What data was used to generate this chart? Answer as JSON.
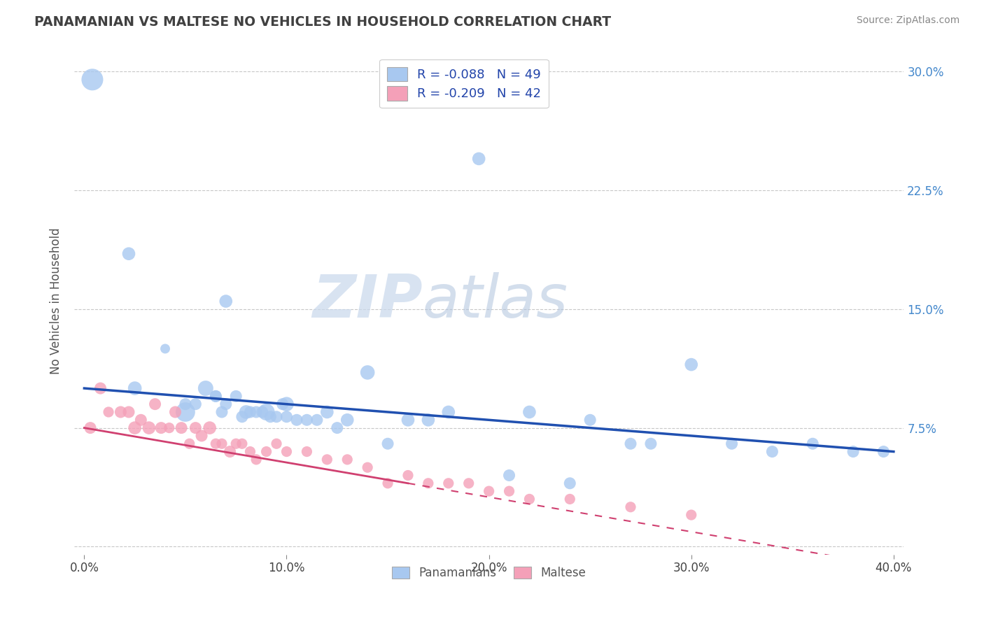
{
  "title": "PANAMANIAN VS MALTESE NO VEHICLES IN HOUSEHOLD CORRELATION CHART",
  "source": "Source: ZipAtlas.com",
  "xlabel_ticks": [
    "0.0%",
    "10.0%",
    "20.0%",
    "30.0%",
    "40.0%"
  ],
  "xlabel_tick_vals": [
    0.0,
    0.1,
    0.2,
    0.3,
    0.4
  ],
  "ylabel_right_ticks": [
    "30.0%",
    "22.5%",
    "15.0%",
    "7.5%",
    ""
  ],
  "ylabel_right_vals": [
    0.3,
    0.225,
    0.15,
    0.075,
    0.0
  ],
  "xlim": [
    -0.005,
    0.405
  ],
  "ylim": [
    -0.005,
    0.315
  ],
  "legend_label1": "R = -0.088   N = 49",
  "legend_label2": "R = -0.209   N = 42",
  "legend_bottom_label1": "Panamanians",
  "legend_bottom_label2": "Maltese",
  "watermark_zip": "ZIP",
  "watermark_atlas": "atlas",
  "panamanian_color": "#a8c8f0",
  "maltese_color": "#f4a0b8",
  "trend_pan_color": "#2050b0",
  "trend_mal_color": "#d04070",
  "panamanian_x": [
    0.004,
    0.022,
    0.04,
    0.05,
    0.05,
    0.055,
    0.06,
    0.065,
    0.065,
    0.068,
    0.07,
    0.07,
    0.075,
    0.078,
    0.08,
    0.082,
    0.085,
    0.088,
    0.09,
    0.092,
    0.095,
    0.098,
    0.1,
    0.1,
    0.105,
    0.11,
    0.115,
    0.12,
    0.125,
    0.13,
    0.14,
    0.15,
    0.16,
    0.17,
    0.18,
    0.195,
    0.21,
    0.22,
    0.24,
    0.25,
    0.27,
    0.28,
    0.3,
    0.32,
    0.34,
    0.36,
    0.38,
    0.395,
    0.025
  ],
  "panamanian_y": [
    0.295,
    0.185,
    0.125,
    0.085,
    0.09,
    0.09,
    0.1,
    0.095,
    0.095,
    0.085,
    0.155,
    0.09,
    0.095,
    0.082,
    0.085,
    0.085,
    0.085,
    0.085,
    0.085,
    0.082,
    0.082,
    0.09,
    0.09,
    0.082,
    0.08,
    0.08,
    0.08,
    0.085,
    0.075,
    0.08,
    0.11,
    0.065,
    0.08,
    0.08,
    0.085,
    0.245,
    0.045,
    0.085,
    0.04,
    0.08,
    0.065,
    0.065,
    0.115,
    0.065,
    0.06,
    0.065,
    0.06,
    0.06,
    0.1
  ],
  "panamanian_size": [
    500,
    180,
    100,
    400,
    150,
    150,
    250,
    150,
    150,
    150,
    180,
    150,
    150,
    150,
    200,
    150,
    150,
    150,
    300,
    150,
    150,
    150,
    220,
    150,
    150,
    150,
    150,
    180,
    150,
    180,
    220,
    150,
    180,
    180,
    180,
    180,
    150,
    180,
    150,
    150,
    150,
    150,
    180,
    150,
    150,
    150,
    150,
    150,
    200
  ],
  "maltese_x": [
    0.003,
    0.008,
    0.012,
    0.018,
    0.022,
    0.025,
    0.028,
    0.032,
    0.035,
    0.038,
    0.042,
    0.045,
    0.048,
    0.052,
    0.055,
    0.058,
    0.062,
    0.065,
    0.068,
    0.072,
    0.075,
    0.078,
    0.082,
    0.085,
    0.09,
    0.095,
    0.1,
    0.11,
    0.12,
    0.13,
    0.14,
    0.15,
    0.16,
    0.17,
    0.18,
    0.19,
    0.2,
    0.21,
    0.22,
    0.24,
    0.27,
    0.3
  ],
  "maltese_y": [
    0.075,
    0.1,
    0.085,
    0.085,
    0.085,
    0.075,
    0.08,
    0.075,
    0.09,
    0.075,
    0.075,
    0.085,
    0.075,
    0.065,
    0.075,
    0.07,
    0.075,
    0.065,
    0.065,
    0.06,
    0.065,
    0.065,
    0.06,
    0.055,
    0.06,
    0.065,
    0.06,
    0.06,
    0.055,
    0.055,
    0.05,
    0.04,
    0.045,
    0.04,
    0.04,
    0.04,
    0.035,
    0.035,
    0.03,
    0.03,
    0.025,
    0.02
  ],
  "maltese_size": [
    150,
    150,
    120,
    150,
    150,
    180,
    150,
    180,
    150,
    150,
    120,
    150,
    150,
    120,
    150,
    150,
    180,
    120,
    120,
    150,
    120,
    120,
    120,
    120,
    120,
    120,
    120,
    120,
    120,
    120,
    120,
    120,
    120,
    120,
    120,
    120,
    120,
    120,
    120,
    120,
    120,
    120
  ],
  "gridline_vals": [
    0.0,
    0.075,
    0.15,
    0.225,
    0.3
  ],
  "gridline_color": "#c8c8c8",
  "mal_solid_xlim": [
    0.0,
    0.16
  ],
  "mal_dash_xlim": [
    0.16,
    0.4
  ]
}
